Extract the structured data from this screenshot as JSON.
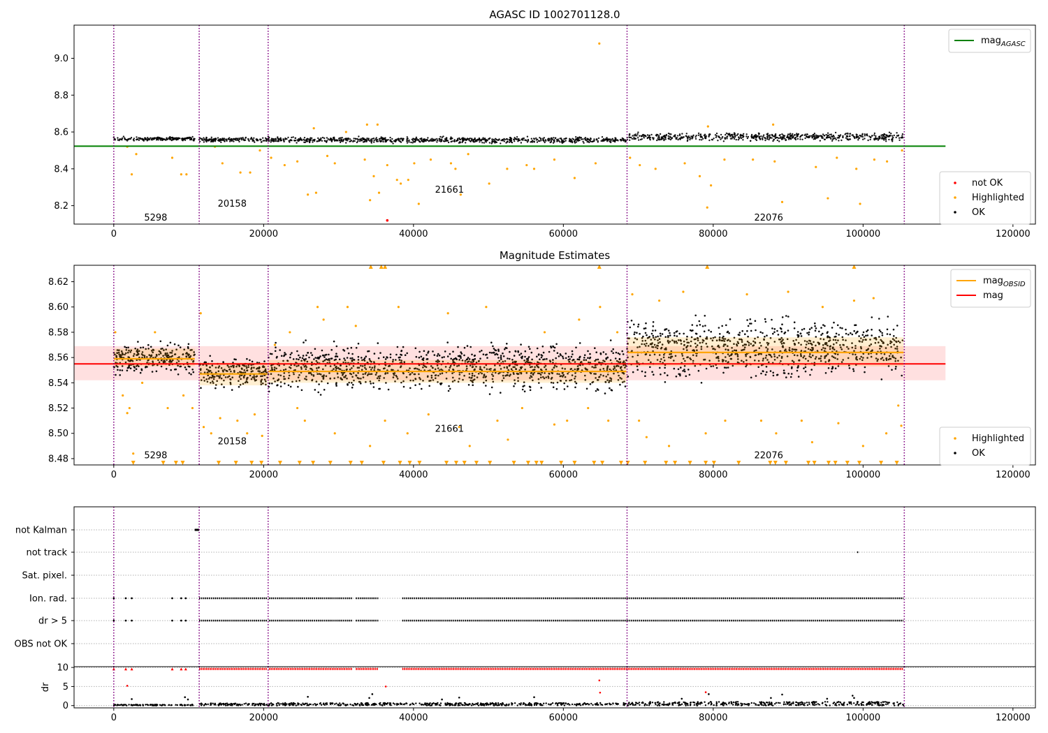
{
  "chart_data": [
    {
      "id": "panel1",
      "type": "scatter",
      "title": "AGASC ID 1002701128.0",
      "xlim": [
        -5300,
        123000
      ],
      "ylim": [
        8.1,
        9.18
      ],
      "x_ticks": [
        0,
        20000,
        40000,
        60000,
        80000,
        100000,
        120000
      ],
      "x_tick_labels": [
        "0",
        "20000",
        "40000",
        "60000",
        "80000",
        "100000",
        "120000"
      ],
      "y_ticks": [
        8.2,
        8.4,
        8.6,
        8.8,
        9.0
      ],
      "y_tick_labels": [
        "8.2",
        "8.4",
        "8.6",
        "8.8",
        "9.0"
      ],
      "obsid_boundaries": [
        0,
        11400,
        20600,
        68500,
        105500
      ],
      "obsid_labels": [
        {
          "text": "5298",
          "x": 5600,
          "y": 8.135
        },
        {
          "text": "20158",
          "x": 15800,
          "y": 8.21
        },
        {
          "text": "21661",
          "x": 44800,
          "y": 8.285
        },
        {
          "text": "22076",
          "x": 87400,
          "y": 8.135
        }
      ],
      "lines": [
        {
          "name": "mag_AGASC",
          "color": "#008000",
          "x": [
            -5300,
            111000
          ],
          "y": [
            8.523,
            8.523
          ]
        }
      ],
      "ok_bands": [
        {
          "x": [
            0,
            10800
          ],
          "y": [
            8.547,
            8.578
          ]
        },
        {
          "x": [
            11400,
            20500
          ],
          "y": [
            8.54,
            8.575
          ]
        },
        {
          "x": [
            20600,
            68400
          ],
          "y": [
            8.535,
            8.578
          ]
        },
        {
          "x": [
            68500,
            105400
          ],
          "y": [
            8.542,
            8.605
          ]
        }
      ],
      "highlighted_points": [
        [
          2400,
          8.37
        ],
        [
          7800,
          8.46
        ],
        [
          9000,
          8.37
        ],
        [
          9700,
          8.37
        ],
        [
          1800,
          8.52
        ],
        [
          3000,
          8.48
        ],
        [
          13500,
          8.52
        ],
        [
          14500,
          8.43
        ],
        [
          16900,
          8.38
        ],
        [
          18200,
          8.38
        ],
        [
          19500,
          8.5
        ],
        [
          21000,
          8.46
        ],
        [
          22800,
          8.42
        ],
        [
          24500,
          8.44
        ],
        [
          25900,
          8.26
        ],
        [
          27000,
          8.27
        ],
        [
          28500,
          8.47
        ],
        [
          29500,
          8.43
        ],
        [
          31000,
          8.6
        ],
        [
          33500,
          8.45
        ],
        [
          34200,
          8.23
        ],
        [
          34700,
          8.36
        ],
        [
          35400,
          8.27
        ],
        [
          36500,
          8.42
        ],
        [
          37800,
          8.34
        ],
        [
          38300,
          8.32
        ],
        [
          39300,
          8.34
        ],
        [
          40100,
          8.43
        ],
        [
          40700,
          8.21
        ],
        [
          42300,
          8.45
        ],
        [
          45000,
          8.43
        ],
        [
          45600,
          8.4
        ],
        [
          46300,
          8.26
        ],
        [
          47300,
          8.48
        ],
        [
          50100,
          8.32
        ],
        [
          52500,
          8.4
        ],
        [
          55100,
          8.42
        ],
        [
          56100,
          8.4
        ],
        [
          58800,
          8.45
        ],
        [
          61500,
          8.35
        ],
        [
          64300,
          8.43
        ],
        [
          64800,
          9.08
        ],
        [
          68900,
          8.46
        ],
        [
          70200,
          8.42
        ],
        [
          72300,
          8.4
        ],
        [
          76200,
          8.43
        ],
        [
          78200,
          8.36
        ],
        [
          79200,
          8.19
        ],
        [
          79700,
          8.31
        ],
        [
          81500,
          8.45
        ],
        [
          85300,
          8.45
        ],
        [
          88200,
          8.44
        ],
        [
          89200,
          8.22
        ],
        [
          93700,
          8.41
        ],
        [
          95300,
          8.24
        ],
        [
          96500,
          8.46
        ],
        [
          99100,
          8.4
        ],
        [
          99600,
          8.21
        ],
        [
          101500,
          8.45
        ],
        [
          103200,
          8.44
        ],
        [
          105200,
          8.5
        ],
        [
          33800,
          8.64
        ],
        [
          35200,
          8.64
        ],
        [
          26700,
          8.62
        ],
        [
          88000,
          8.64
        ],
        [
          79300,
          8.63
        ]
      ],
      "not_ok_points": [
        [
          36500,
          8.12
        ]
      ],
      "legends": [
        {
          "entries": [
            {
              "label_main": "mag",
              "label_sub": "AGASC",
              "color": "#008000",
              "marker": "line"
            }
          ]
        },
        {
          "entries": [
            {
              "label": "not OK",
              "color": "#ff0000",
              "marker": "dot"
            },
            {
              "label": "Highlighted",
              "color": "#ffa500",
              "marker": "dot"
            },
            {
              "label": "OK",
              "color": "#000000",
              "marker": "dot"
            }
          ]
        }
      ]
    },
    {
      "id": "panel2",
      "type": "scatter",
      "title": "Magnitude Estimates",
      "xlim": [
        -5300,
        123000
      ],
      "ylim": [
        8.475,
        8.633
      ],
      "x_ticks": [
        0,
        20000,
        40000,
        60000,
        80000,
        100000,
        120000
      ],
      "x_tick_labels": [
        "0",
        "20000",
        "40000",
        "60000",
        "80000",
        "100000",
        "120000"
      ],
      "y_ticks": [
        8.48,
        8.5,
        8.52,
        8.54,
        8.56,
        8.58,
        8.6,
        8.62
      ],
      "y_tick_labels": [
        "8.48",
        "8.50",
        "8.52",
        "8.54",
        "8.56",
        "8.58",
        "8.60",
        "8.62"
      ],
      "obsid_boundaries": [
        0,
        11400,
        20600,
        68500,
        105500
      ],
      "obsid_labels": [
        {
          "text": "5298",
          "x": 5600,
          "y": 8.4825
        },
        {
          "text": "20158",
          "x": 15800,
          "y": 8.4935
        },
        {
          "text": "21661",
          "x": 44800,
          "y": 8.5035
        },
        {
          "text": "22076",
          "x": 87400,
          "y": 8.4825
        }
      ],
      "mag": {
        "value": 8.555,
        "band": [
          8.542,
          8.569
        ],
        "x": [
          -5300,
          111000
        ],
        "color": "#ff0000"
      },
      "mag_obsid": [
        {
          "x": [
            0,
            10800
          ],
          "y": 8.559,
          "band": [
            8.553,
            8.567
          ]
        },
        {
          "x": [
            11400,
            20500
          ],
          "y": 8.547,
          "band": [
            8.538,
            8.556
          ]
        },
        {
          "x": [
            20600,
            68400
          ],
          "y": 8.549,
          "band": [
            8.54,
            8.558
          ]
        },
        {
          "x": [
            68500,
            105400
          ],
          "y": 8.564,
          "band": [
            8.553,
            8.576
          ]
        }
      ],
      "ok_bands": [
        {
          "x": [
            0,
            10800
          ],
          "y": [
            8.542,
            8.575
          ]
        },
        {
          "x": [
            11400,
            20500
          ],
          "y": [
            8.533,
            8.564
          ]
        },
        {
          "x": [
            20600,
            68400
          ],
          "y": [
            8.528,
            8.576
          ]
        },
        {
          "x": [
            68500,
            105400
          ],
          "y": [
            8.538,
            8.598
          ]
        }
      ],
      "highlighted_points": [
        [
          200,
          8.58
        ],
        [
          1200,
          8.53
        ],
        [
          2100,
          8.52
        ],
        [
          3800,
          8.54
        ],
        [
          5500,
          8.58
        ],
        [
          7200,
          8.52
        ],
        [
          9300,
          8.53
        ],
        [
          10500,
          8.52
        ],
        [
          1800,
          8.516
        ],
        [
          2600,
          8.484
        ],
        [
          11600,
          8.595
        ],
        [
          12000,
          8.505
        ],
        [
          13000,
          8.5
        ],
        [
          14200,
          8.512
        ],
        [
          16500,
          8.51
        ],
        [
          17800,
          8.5
        ],
        [
          18800,
          8.515
        ],
        [
          19800,
          8.498
        ],
        [
          21500,
          8.57
        ],
        [
          23500,
          8.58
        ],
        [
          24500,
          8.52
        ],
        [
          25500,
          8.51
        ],
        [
          27200,
          8.6
        ],
        [
          28000,
          8.59
        ],
        [
          29500,
          8.5
        ],
        [
          31200,
          8.6
        ],
        [
          32300,
          8.585
        ],
        [
          34200,
          8.49
        ],
        [
          36200,
          8.51
        ],
        [
          38000,
          8.6
        ],
        [
          39200,
          8.5
        ],
        [
          42000,
          8.515
        ],
        [
          44600,
          8.595
        ],
        [
          46100,
          8.505
        ],
        [
          47500,
          8.49
        ],
        [
          49700,
          8.6
        ],
        [
          51200,
          8.51
        ],
        [
          52600,
          8.495
        ],
        [
          54500,
          8.52
        ],
        [
          57500,
          8.58
        ],
        [
          58800,
          8.507
        ],
        [
          60500,
          8.51
        ],
        [
          62100,
          8.59
        ],
        [
          63300,
          8.52
        ],
        [
          64900,
          8.6
        ],
        [
          66000,
          8.51
        ],
        [
          67200,
          8.58
        ],
        [
          69200,
          8.61
        ],
        [
          70100,
          8.51
        ],
        [
          71100,
          8.497
        ],
        [
          72800,
          8.605
        ],
        [
          74100,
          8.49
        ],
        [
          76000,
          8.612
        ],
        [
          79000,
          8.5
        ],
        [
          81600,
          8.51
        ],
        [
          84500,
          8.61
        ],
        [
          86400,
          8.51
        ],
        [
          88400,
          8.5
        ],
        [
          90000,
          8.612
        ],
        [
          91800,
          8.51
        ],
        [
          93200,
          8.493
        ],
        [
          94600,
          8.6
        ],
        [
          96700,
          8.508
        ],
        [
          98800,
          8.605
        ],
        [
          100000,
          8.49
        ],
        [
          101400,
          8.607
        ],
        [
          103100,
          8.5
        ],
        [
          104700,
          8.522
        ],
        [
          105100,
          8.506
        ]
      ],
      "offscale_high": [
        34300,
        35700,
        36200,
        64800,
        79200,
        98800
      ],
      "offscale_low": [
        2600,
        6600,
        8300,
        9200,
        14000,
        16300,
        18400,
        19700,
        22200,
        24800,
        26600,
        28900,
        31600,
        33100,
        36000,
        38200,
        39500,
        40800,
        44400,
        45700,
        46800,
        48400,
        50200,
        53400,
        55300,
        56400,
        57100,
        59700,
        61500,
        64100,
        65200,
        67700,
        68600,
        70900,
        73700,
        74900,
        76900,
        79000,
        80100,
        83400,
        87600,
        88300,
        89700,
        92700,
        93500,
        95400,
        96300,
        97900,
        99500,
        102400,
        104500
      ],
      "legends": [
        {
          "entries": [
            {
              "label_main": "mag",
              "label_sub": "OBSID",
              "color": "#ffa500",
              "marker": "line"
            },
            {
              "label": "mag",
              "color": "#ff0000",
              "marker": "line"
            }
          ]
        },
        {
          "entries": [
            {
              "label": "Highlighted",
              "color": "#ffa500",
              "marker": "dot"
            },
            {
              "label": "OK",
              "color": "#000000",
              "marker": "dot"
            }
          ]
        }
      ]
    },
    {
      "id": "panel3",
      "type": "scatter",
      "xlim": [
        -5300,
        123000
      ],
      "flags": [
        "not Kalman",
        "not track",
        "Sat. pixel.",
        "Ion. rad.",
        "dr > 5",
        "OBS not OK"
      ],
      "flag_hits": {
        "not Kalman": [
          [
            10800,
            11400
          ]
        ],
        "not track": [
          [
            99200,
            99400
          ]
        ],
        "Sat. pixel.": [],
        "Ion. rad.": [
          [
            0,
            0
          ],
          [
            1600,
            1600
          ],
          [
            2400,
            2400
          ],
          [
            7800,
            7800
          ],
          [
            9000,
            9000
          ],
          [
            9600,
            9600
          ],
          [
            11400,
            20500
          ],
          [
            20700,
            31800
          ],
          [
            32300,
            35300
          ],
          [
            38500,
            105400
          ]
        ],
        "dr > 5": [
          [
            0,
            0
          ],
          [
            1600,
            1600
          ],
          [
            2400,
            2400
          ],
          [
            7800,
            7800
          ],
          [
            9000,
            9000
          ],
          [
            9600,
            9600
          ],
          [
            11400,
            20500
          ],
          [
            20700,
            31800
          ],
          [
            32300,
            35300
          ],
          [
            38500,
            105400
          ]
        ],
        "OBS not OK": []
      }
    },
    {
      "id": "panel4",
      "type": "scatter",
      "ylabel": "dr",
      "xlim": [
        -5300,
        123000
      ],
      "ylim": [
        -0.6,
        10.2
      ],
      "x_ticks": [
        0,
        20000,
        40000,
        60000,
        80000,
        100000,
        120000
      ],
      "x_tick_labels": [
        "0",
        "20000",
        "40000",
        "60000",
        "80000",
        "100000",
        "120000"
      ],
      "y_ticks": [
        0,
        5,
        10
      ],
      "y_tick_labels": [
        "0",
        "5",
        "10"
      ],
      "ok_bands": [
        {
          "x": [
            0,
            10800
          ],
          "y": [
            0,
            0.3
          ]
        },
        {
          "x": [
            11400,
            20500
          ],
          "y": [
            0,
            0.6
          ]
        },
        {
          "x": [
            20600,
            68400
          ],
          "y": [
            0,
            0.7
          ]
        },
        {
          "x": [
            68500,
            105400
          ],
          "y": [
            0,
            1.0
          ]
        }
      ],
      "capped_segments": [
        [
          0,
          0
        ],
        [
          1600,
          1600
        ],
        [
          2400,
          2400
        ],
        [
          7800,
          7800
        ],
        [
          9000,
          9000
        ],
        [
          9600,
          9600
        ],
        [
          11400,
          20500
        ],
        [
          20700,
          31800
        ],
        [
          32300,
          35300
        ],
        [
          38500,
          105400
        ]
      ],
      "capped_value": 9.6,
      "high_points": [
        [
          1800,
          5.2
        ],
        [
          36300,
          5.0
        ],
        [
          64800,
          6.6
        ],
        [
          64900,
          3.4
        ],
        [
          79000,
          3.5
        ],
        [
          79400,
          3.0
        ],
        [
          98600,
          2.6
        ],
        [
          98800,
          2.0
        ],
        [
          9500,
          2.2
        ],
        [
          9900,
          1.6
        ],
        [
          25900,
          2.3
        ],
        [
          34500,
          3.0
        ],
        [
          34100,
          2.0
        ],
        [
          43800,
          1.6
        ],
        [
          46100,
          2.1
        ],
        [
          56100,
          2.2
        ],
        [
          75800,
          1.8
        ],
        [
          89200,
          2.9
        ],
        [
          2400,
          1.7
        ],
        [
          87700,
          2.0
        ],
        [
          95200,
          1.8
        ]
      ]
    }
  ]
}
